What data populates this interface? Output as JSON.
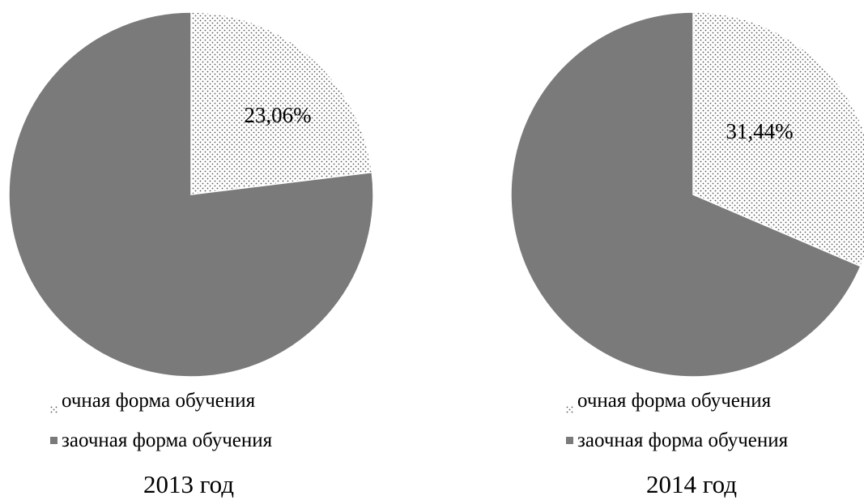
{
  "legend": {
    "full_time": "очная форма обучения",
    "part_time": "заочная форма обучения"
  },
  "colors": {
    "full_time_fill": "dotted-white-pattern",
    "part_time_fill": "#7a7a7a"
  },
  "chart_data": [
    {
      "type": "pie",
      "caption": "2013 год",
      "categories": [
        "очная форма обучения",
        "заочная форма обучения"
      ],
      "values": [
        23.06,
        76.94
      ],
      "data_labels": [
        "23,06%",
        ""
      ],
      "legend_position": "bottom"
    },
    {
      "type": "pie",
      "caption": "2014 год",
      "categories": [
        "очная форма обучения",
        "заочная форма обучения"
      ],
      "values": [
        31.44,
        68.56
      ],
      "data_labels": [
        "31,44%",
        ""
      ],
      "legend_position": "bottom"
    }
  ]
}
